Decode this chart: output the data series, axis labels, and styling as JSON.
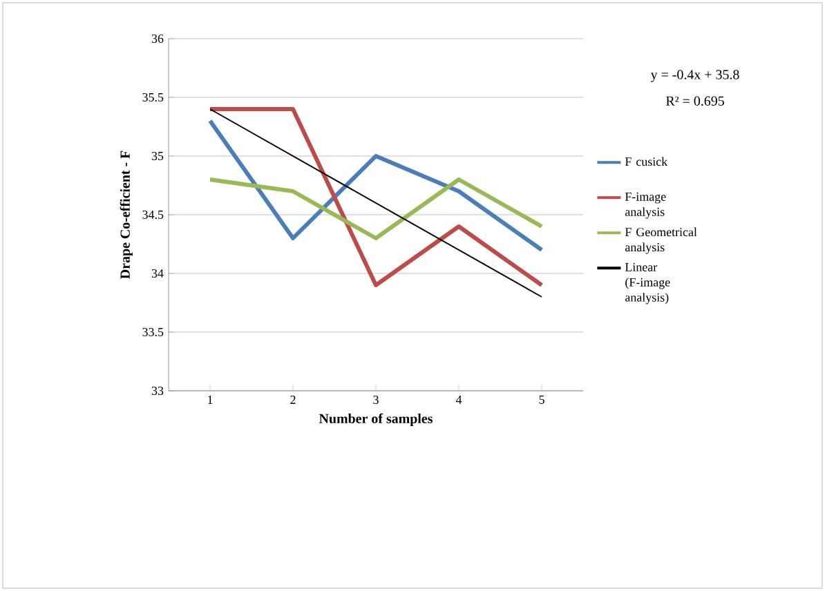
{
  "chart_data": {
    "type": "line",
    "xlabel": "Number of samples",
    "ylabel": "Drape Co-efficient - F",
    "x": [
      1,
      2,
      3,
      4,
      5
    ],
    "xlim": [
      0.5,
      5.5
    ],
    "xticks": [
      1,
      2,
      3,
      4,
      5
    ],
    "ylim": [
      33,
      36
    ],
    "yticks": [
      33,
      33.5,
      34,
      34.5,
      35,
      35.5,
      36
    ],
    "grid": "y",
    "legend": "right",
    "marker": "none",
    "series": [
      {
        "name": "F cusick",
        "color": "#4a7ebb",
        "values": [
          35.3,
          34.3,
          35.0,
          34.7,
          34.2
        ]
      },
      {
        "name": "F-image analysis",
        "color": "#be4b48",
        "values": [
          35.4,
          35.4,
          33.9,
          34.4,
          33.9
        ]
      },
      {
        "name": "F Geometrical analysis",
        "color": "#98b954",
        "values": [
          34.8,
          34.7,
          34.3,
          34.8,
          34.4
        ]
      },
      {
        "name": "Linear (F-image analysis)",
        "color": "#000000",
        "x": [
          1,
          5
        ],
        "values": [
          35.4,
          33.8
        ]
      }
    ],
    "annotations": [
      "y = -0.4x + 35.8",
      "R² = 0.695"
    ]
  }
}
